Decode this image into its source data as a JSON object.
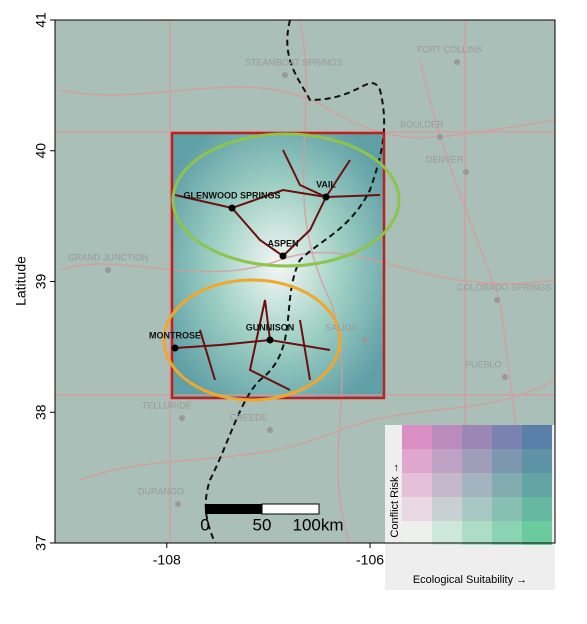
{
  "axes": {
    "ylabel": "Latitude",
    "xlim": [
      -109.1,
      -104.18
    ],
    "ylim": [
      37,
      41
    ],
    "xticks": [
      -108,
      -106
    ],
    "yticks": [
      41,
      40,
      39,
      38,
      37
    ]
  },
  "cities": [
    {
      "name": "STEAMBOAT SPRINGS",
      "major": false
    },
    {
      "name": "FORT COLLINS",
      "major": false
    },
    {
      "name": "BOULDER",
      "major": false
    },
    {
      "name": "DENVER",
      "major": false
    },
    {
      "name": "GLENWOOD SPRINGS",
      "major": true
    },
    {
      "name": "VAIL",
      "major": true
    },
    {
      "name": "ASPEN",
      "major": true
    },
    {
      "name": "GRAND JUNCTION",
      "major": false
    },
    {
      "name": "COLORADO SPRINGS",
      "major": false
    },
    {
      "name": "SALIDA",
      "major": false
    },
    {
      "name": "GUNNISON",
      "major": true
    },
    {
      "name": "MONTROSE",
      "major": true
    },
    {
      "name": "PUEBLO",
      "major": false
    },
    {
      "name": "TELLURIDE",
      "major": false
    },
    {
      "name": "CREEDE",
      "major": false
    },
    {
      "name": "DURANGO",
      "major": false
    }
  ],
  "scale_bar": {
    "labels": [
      "0",
      "50",
      "100km"
    ]
  },
  "legend": {
    "y_label": "Conflict Risk →",
    "x_label": "Ecological Suitability →"
  }
}
